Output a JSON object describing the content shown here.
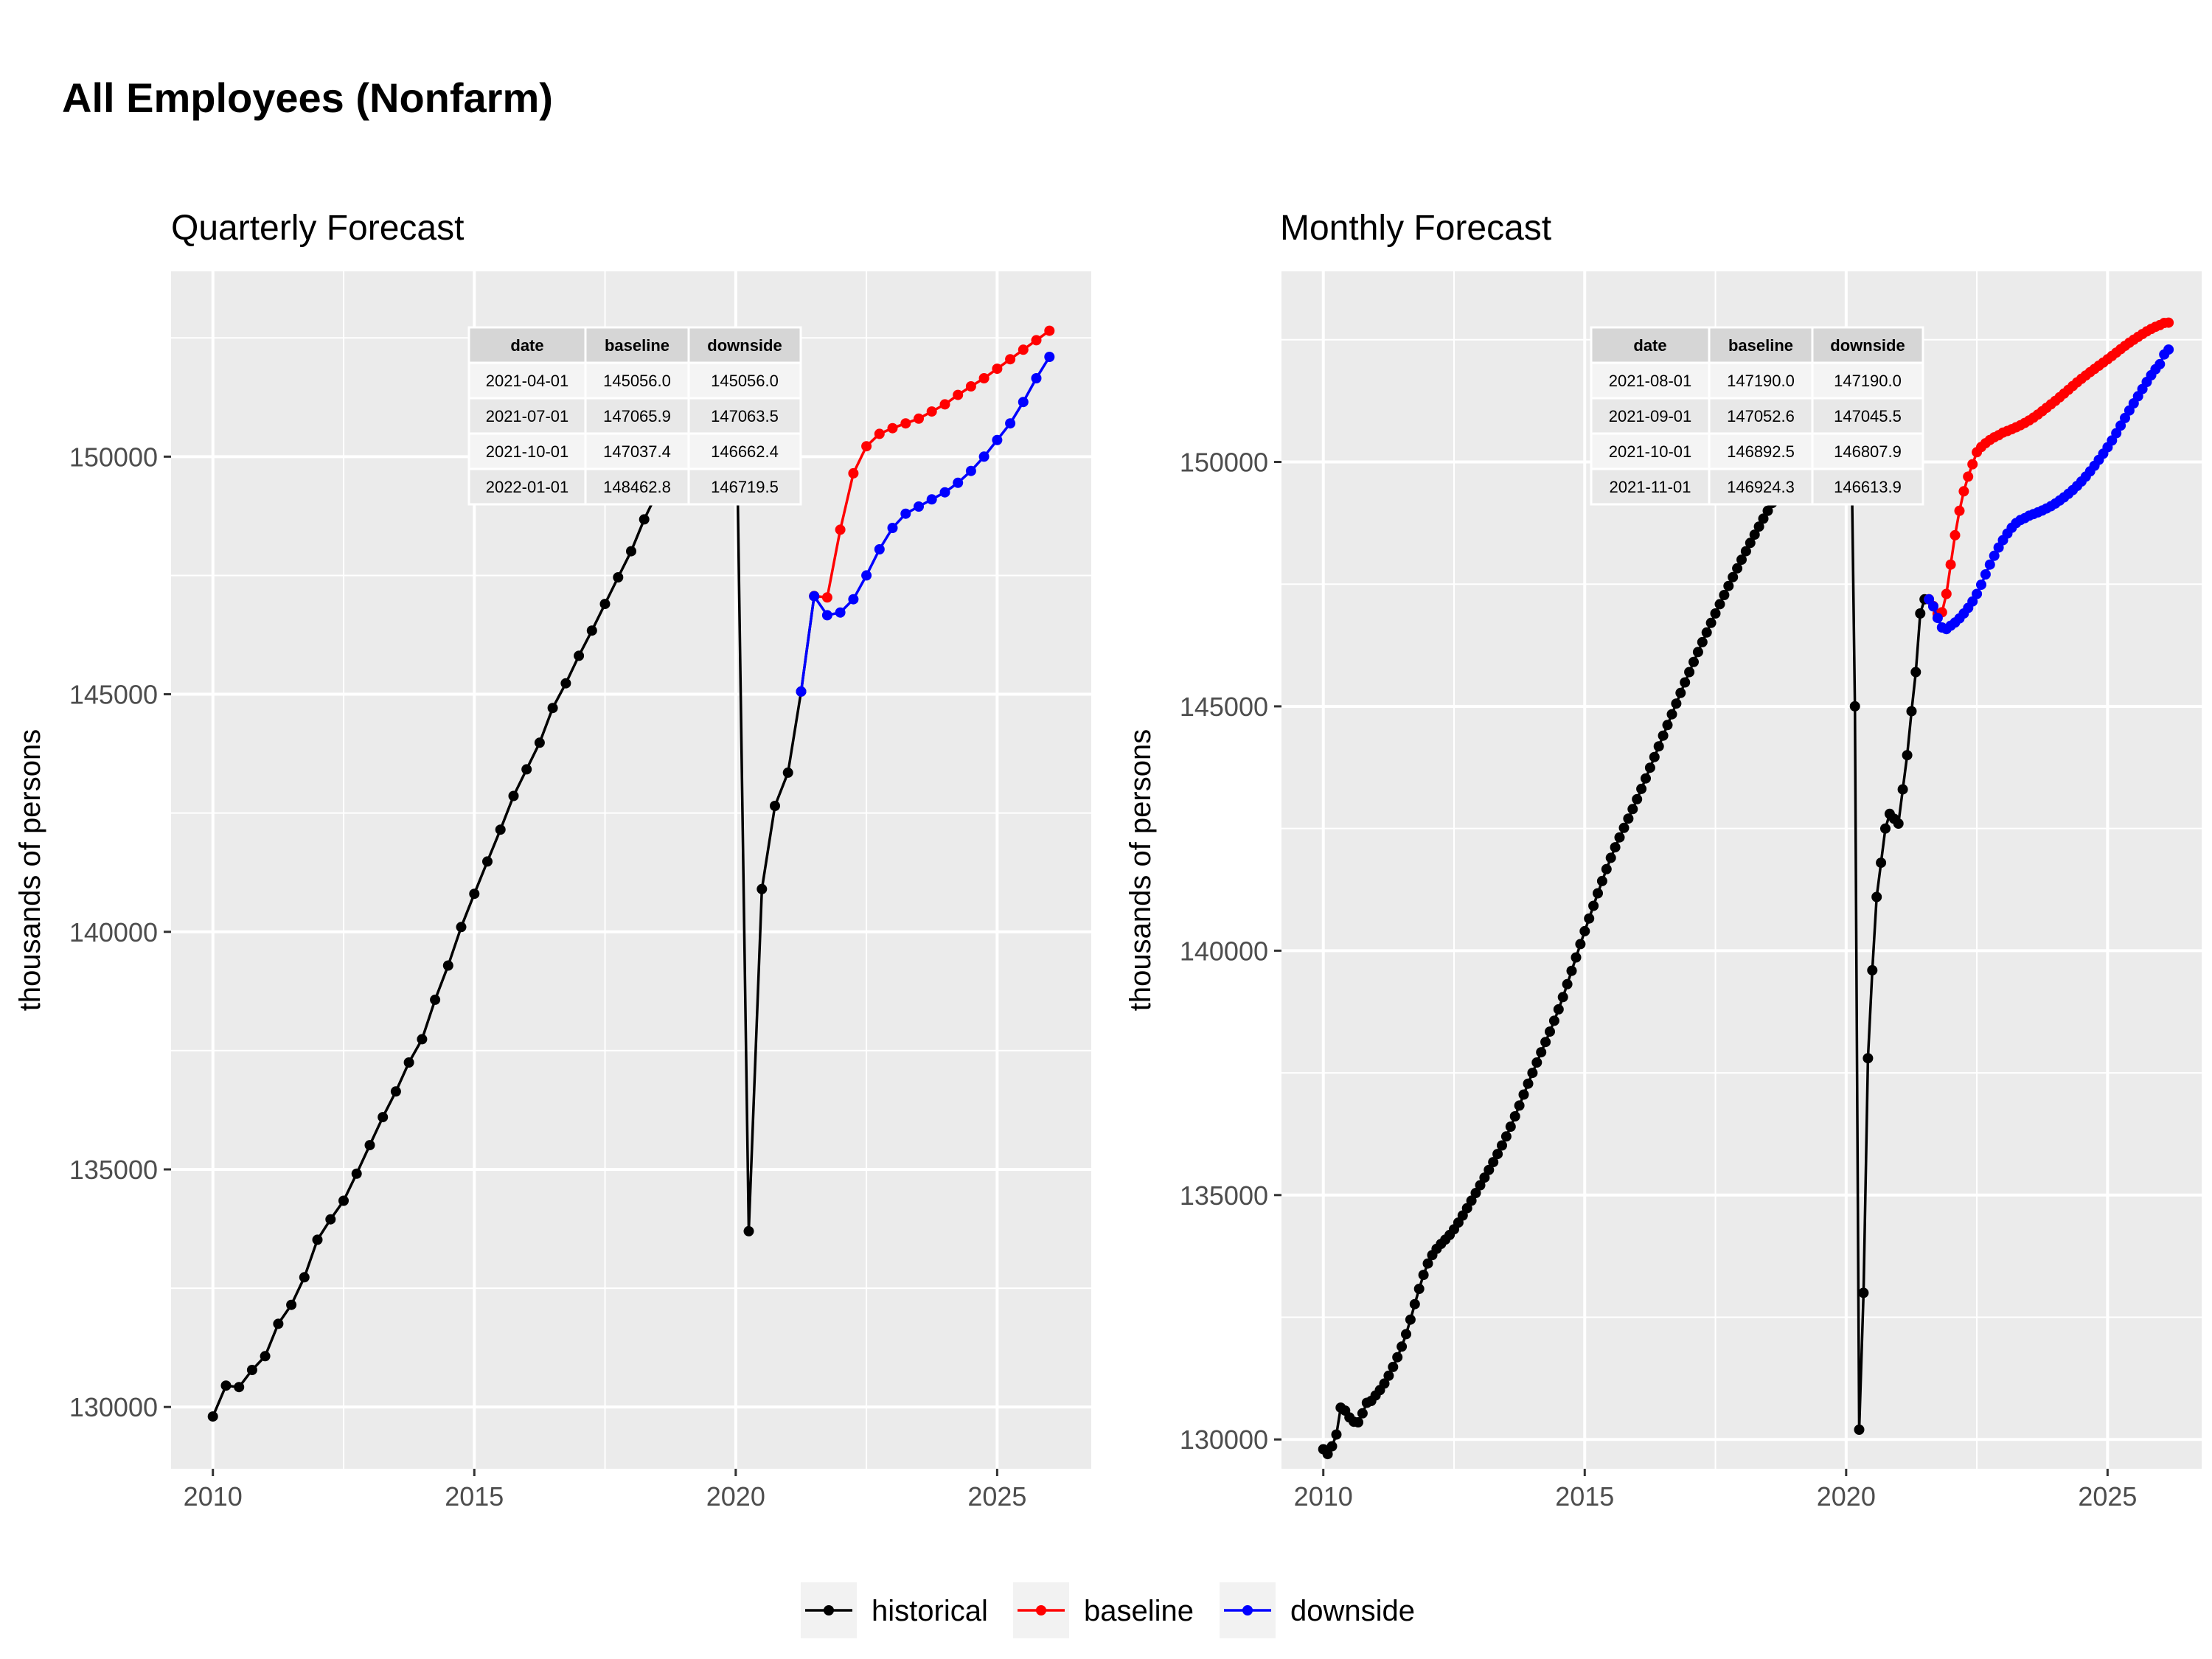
{
  "title": "All Employees (Nonfarm)",
  "colors": {
    "historical": "#000000",
    "baseline": "#ff0000",
    "downside": "#0000ff",
    "panel": "#ebebeb",
    "grid": "#ffffff"
  },
  "legend": {
    "placement": "bottom",
    "items": [
      "historical",
      "baseline",
      "downside"
    ]
  },
  "chart_data": [
    {
      "type": "line",
      "subtitle": "Quarterly Forecast",
      "ylabel": "thousands of persons",
      "xlim": [
        2009.2,
        2026.8
      ],
      "ylim": [
        128700,
        153900
      ],
      "x_ticks": [
        2010,
        2015,
        2020,
        2025
      ],
      "y_ticks": [
        130000,
        135000,
        140000,
        145000,
        150000
      ],
      "grid": true,
      "series": [
        {
          "name": "historical",
          "x": [
            2010.0,
            2010.25,
            2010.5,
            2010.75,
            2011.0,
            2011.25,
            2011.5,
            2011.75,
            2012.0,
            2012.25,
            2012.5,
            2012.75,
            2013.0,
            2013.25,
            2013.5,
            2013.75,
            2014.0,
            2014.25,
            2014.5,
            2014.75,
            2015.0,
            2015.25,
            2015.5,
            2015.75,
            2016.0,
            2016.25,
            2016.5,
            2016.75,
            2017.0,
            2017.25,
            2017.5,
            2017.75,
            2018.0,
            2018.25,
            2018.5,
            2018.75,
            2019.0,
            2019.25,
            2019.5,
            2019.75,
            2020.0,
            2020.25,
            2020.5,
            2020.75,
            2021.0,
            2021.25,
            2021.5
          ],
          "y": [
            129800,
            130450,
            130420,
            130780,
            131070,
            131750,
            132150,
            132730,
            133520,
            133950,
            134340,
            134910,
            135510,
            136100,
            136640,
            137250,
            137740,
            138570,
            139290,
            140100,
            140800,
            141480,
            142150,
            142860,
            143420,
            143980,
            144710,
            145230,
            145810,
            146340,
            146900,
            147460,
            148010,
            148680,
            149250,
            149820,
            150300,
            150800,
            151500,
            152100,
            152000,
            133700,
            140900,
            142650,
            143350,
            145056,
            147065.9
          ]
        },
        {
          "name": "baseline",
          "x": [
            2021.5,
            2021.75,
            2022.0,
            2022.25,
            2022.5,
            2022.75,
            2023.0,
            2023.25,
            2023.5,
            2023.75,
            2024.0,
            2024.25,
            2024.5,
            2024.75,
            2025.0,
            2025.25,
            2025.5,
            2025.75,
            2026.0
          ],
          "y": [
            147065.9,
            147037.4,
            148462.8,
            149650,
            150220,
            150480,
            150600,
            150700,
            150800,
            150950,
            151100,
            151300,
            151480,
            151650,
            151850,
            152050,
            152250,
            152450,
            152650
          ]
        },
        {
          "name": "downside",
          "x": [
            2021.25,
            2021.5,
            2021.75,
            2022.0,
            2022.25,
            2022.5,
            2022.75,
            2023.0,
            2023.25,
            2023.5,
            2023.75,
            2024.0,
            2024.25,
            2024.5,
            2024.75,
            2025.0,
            2025.25,
            2025.5,
            2025.75,
            2026.0
          ],
          "y": [
            145056,
            147063.5,
            146662.4,
            146719.5,
            147000,
            147500,
            148050,
            148500,
            148800,
            148950,
            149100,
            149250,
            149450,
            149700,
            150000,
            150350,
            150700,
            151150,
            151650,
            152100
          ]
        }
      ],
      "table": {
        "headers": [
          "date",
          "baseline",
          "downside"
        ],
        "rows": [
          [
            "2021-04-01",
            "145056.0",
            "145056.0"
          ],
          [
            "2021-07-01",
            "147065.9",
            "147063.5"
          ],
          [
            "2021-10-01",
            "147037.4",
            "146662.4"
          ],
          [
            "2022-01-01",
            "148462.8",
            "146719.5"
          ]
        ]
      }
    },
    {
      "type": "line",
      "subtitle": "Monthly Forecast",
      "ylabel": "thousands of persons",
      "xlim": [
        2009.2,
        2026.8
      ],
      "ylim": [
        129400,
        153900
      ],
      "x_ticks": [
        2010,
        2015,
        2020,
        2025
      ],
      "y_ticks": [
        130000,
        135000,
        140000,
        145000,
        150000
      ],
      "grid": true,
      "series": [
        {
          "name": "historical",
          "anchors_x": [
            2010.0,
            2010.083,
            2010.25,
            2010.333,
            2010.5,
            2010.667,
            2010.833,
            2011.0,
            2011.5,
            2012.0,
            2012.5,
            2013.0,
            2013.5,
            2014.0,
            2014.5,
            2015.0,
            2015.5,
            2016.0,
            2016.5,
            2017.0,
            2017.5,
            2018.0,
            2018.5,
            2019.0,
            2019.5,
            2019.917,
            2020.0,
            2020.083,
            2020.167,
            2020.25,
            2020.333,
            2020.417,
            2020.5,
            2020.583,
            2020.667,
            2020.75,
            2020.833,
            2020.917,
            2021.0,
            2021.083,
            2021.167,
            2021.25,
            2021.333,
            2021.417,
            2021.5
          ],
          "anchors_y": [
            129800,
            129700,
            130100,
            130650,
            130450,
            130350,
            130750,
            130900,
            131900,
            133600,
            134300,
            135200,
            136200,
            137500,
            138800,
            140400,
            141900,
            143100,
            144400,
            145700,
            146900,
            148000,
            149000,
            149900,
            150500,
            152400,
            152300,
            151800,
            145000,
            130200,
            133000,
            137800,
            139600,
            141100,
            141800,
            142500,
            142800,
            142700,
            142600,
            143300,
            144000,
            144900,
            145700,
            146900,
            147190
          ]
        },
        {
          "name": "baseline",
          "anchors_x": [
            2021.583,
            2021.667,
            2021.75,
            2021.833,
            2021.917,
            2022.0,
            2022.083,
            2022.167,
            2022.25,
            2022.333,
            2022.5,
            2022.75,
            2023.0,
            2023.5,
            2024.0,
            2024.5,
            2025.0,
            2025.5,
            2026.0,
            2026.167
          ],
          "anchors_y": [
            147190,
            147052.6,
            146892.5,
            146924.3,
            147300,
            147900,
            148500,
            149000,
            149400,
            149700,
            150200,
            150450,
            150600,
            150850,
            151250,
            151700,
            152100,
            152500,
            152800,
            152850
          ]
        },
        {
          "name": "downside",
          "anchors_x": [
            2021.583,
            2021.667,
            2021.75,
            2021.833,
            2021.917,
            2022.0,
            2022.25,
            2022.5,
            2022.75,
            2023.0,
            2023.25,
            2023.5,
            2024.0,
            2024.5,
            2025.0,
            2025.5,
            2026.0,
            2026.167
          ],
          "anchors_y": [
            147190,
            147045.5,
            146807.9,
            146613.9,
            146580,
            146650,
            146900,
            147300,
            147900,
            148400,
            148750,
            148900,
            149150,
            149600,
            150300,
            151200,
            152000,
            152300
          ]
        }
      ],
      "table": {
        "headers": [
          "date",
          "baseline",
          "downside"
        ],
        "rows": [
          [
            "2021-08-01",
            "147190.0",
            "147190.0"
          ],
          [
            "2021-09-01",
            "147052.6",
            "147045.5"
          ],
          [
            "2021-10-01",
            "146892.5",
            "146807.9"
          ],
          [
            "2021-11-01",
            "146924.3",
            "146613.9"
          ]
        ]
      }
    }
  ]
}
